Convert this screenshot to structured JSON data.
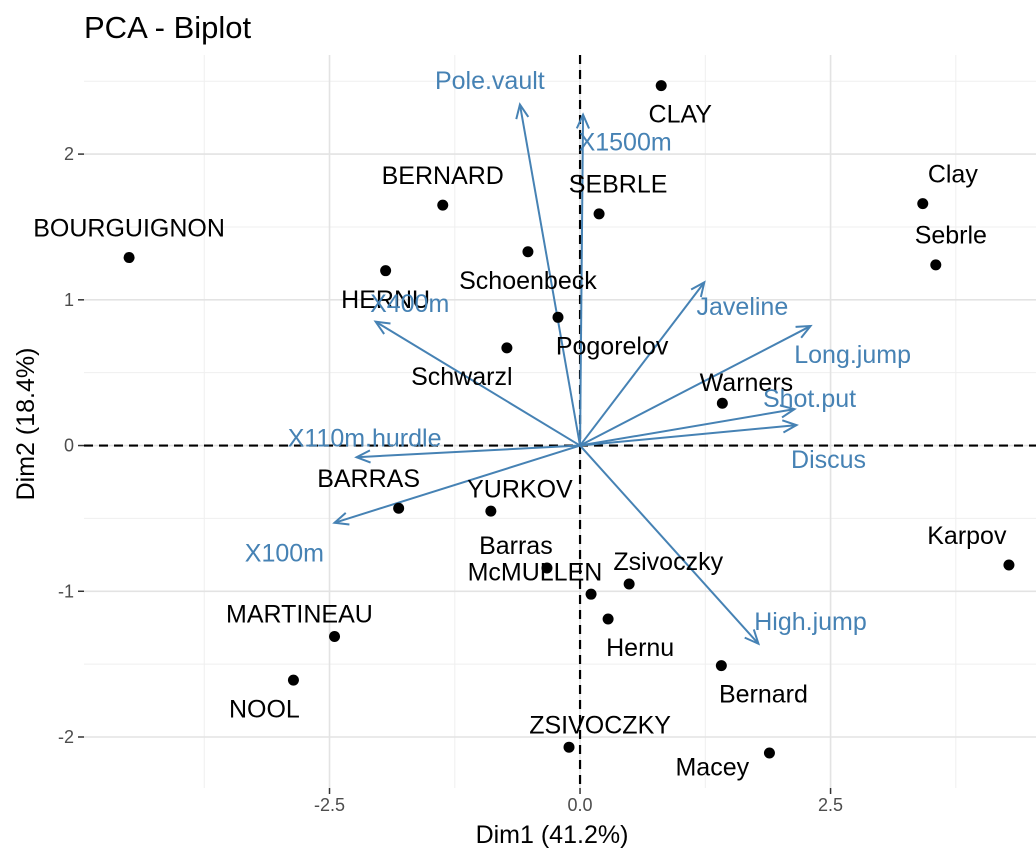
{
  "chart_data": {
    "type": "scatter",
    "title": "PCA - Biplot",
    "xlabel": "Dim1 (41.2%)",
    "ylabel": "Dim2 (18.4%)",
    "xlim": [
      -4.95,
      4.55
    ],
    "ylim": [
      -2.35,
      2.68
    ],
    "x_ticks": [
      -2.5,
      0,
      2.5
    ],
    "x_tick_labels": [
      "-2.5",
      "0.0",
      "2.5"
    ],
    "y_ticks": [
      -2,
      -1,
      0,
      1,
      2
    ],
    "y_tick_labels": [
      "-2",
      "-1",
      "0",
      "1",
      "2"
    ],
    "grid": true,
    "point_color": "#000000",
    "arrow_color": "#4682b4",
    "individuals": [
      {
        "name": "BOURGUIGNON",
        "x": -4.5,
        "y": 1.29
      },
      {
        "name": "BERNARD",
        "x": -1.37,
        "y": 1.65
      },
      {
        "name": "HERNU",
        "x": -1.94,
        "y": 1.2
      },
      {
        "name": "Schoenbeck",
        "x": -0.52,
        "y": 1.33
      },
      {
        "name": "CLAY",
        "x": 0.81,
        "y": 2.47
      },
      {
        "name": "SEBRLE",
        "x": 0.19,
        "y": 1.59
      },
      {
        "name": "Pogorelov",
        "x": -0.22,
        "y": 0.88
      },
      {
        "name": "Schwarzl",
        "x": -0.73,
        "y": 0.67
      },
      {
        "name": "Clay",
        "x": 3.42,
        "y": 1.66
      },
      {
        "name": "Sebrle",
        "x": 3.55,
        "y": 1.24
      },
      {
        "name": "Warners",
        "x": 1.42,
        "y": 0.29
      },
      {
        "name": "BARRAS",
        "x": -1.81,
        "y": -0.43
      },
      {
        "name": "YURKOV",
        "x": -0.89,
        "y": -0.45
      },
      {
        "name": "Karpov",
        "x": 4.28,
        "y": -0.82
      },
      {
        "name": "Barras",
        "x": -0.33,
        "y": -0.84
      },
      {
        "name": "Zsivoczky",
        "x": 0.49,
        "y": -0.95
      },
      {
        "name": "McMULLEN",
        "x": 0.11,
        "y": -1.02
      },
      {
        "name": "Hernu",
        "x": 0.28,
        "y": -1.19
      },
      {
        "name": "MARTINEAU",
        "x": -2.45,
        "y": -1.31
      },
      {
        "name": "NOOL",
        "x": -2.86,
        "y": -1.61
      },
      {
        "name": "Bernard",
        "x": 1.41,
        "y": -1.51
      },
      {
        "name": "ZSIVOCZKY",
        "x": -0.11,
        "y": -2.07
      },
      {
        "name": "Macey",
        "x": 1.89,
        "y": -2.11
      }
    ],
    "variables": [
      {
        "name": "Pole.vault",
        "x": -0.6,
        "y": 2.34
      },
      {
        "name": "X1500m",
        "x": 0.03,
        "y": 2.27
      },
      {
        "name": "X400m",
        "x": -2.04,
        "y": 0.85
      },
      {
        "name": "Javeline",
        "x": 1.24,
        "y": 1.12
      },
      {
        "name": "Long.jump",
        "x": 2.3,
        "y": 0.82
      },
      {
        "name": "Shot.put",
        "x": 2.14,
        "y": 0.25
      },
      {
        "name": "Discus",
        "x": 2.16,
        "y": 0.14
      },
      {
        "name": "X110m.hurdle",
        "x": -2.23,
        "y": -0.08
      },
      {
        "name": "X100m",
        "x": -2.45,
        "y": -0.53
      },
      {
        "name": "High.jump",
        "x": 1.78,
        "y": -1.36
      }
    ]
  }
}
